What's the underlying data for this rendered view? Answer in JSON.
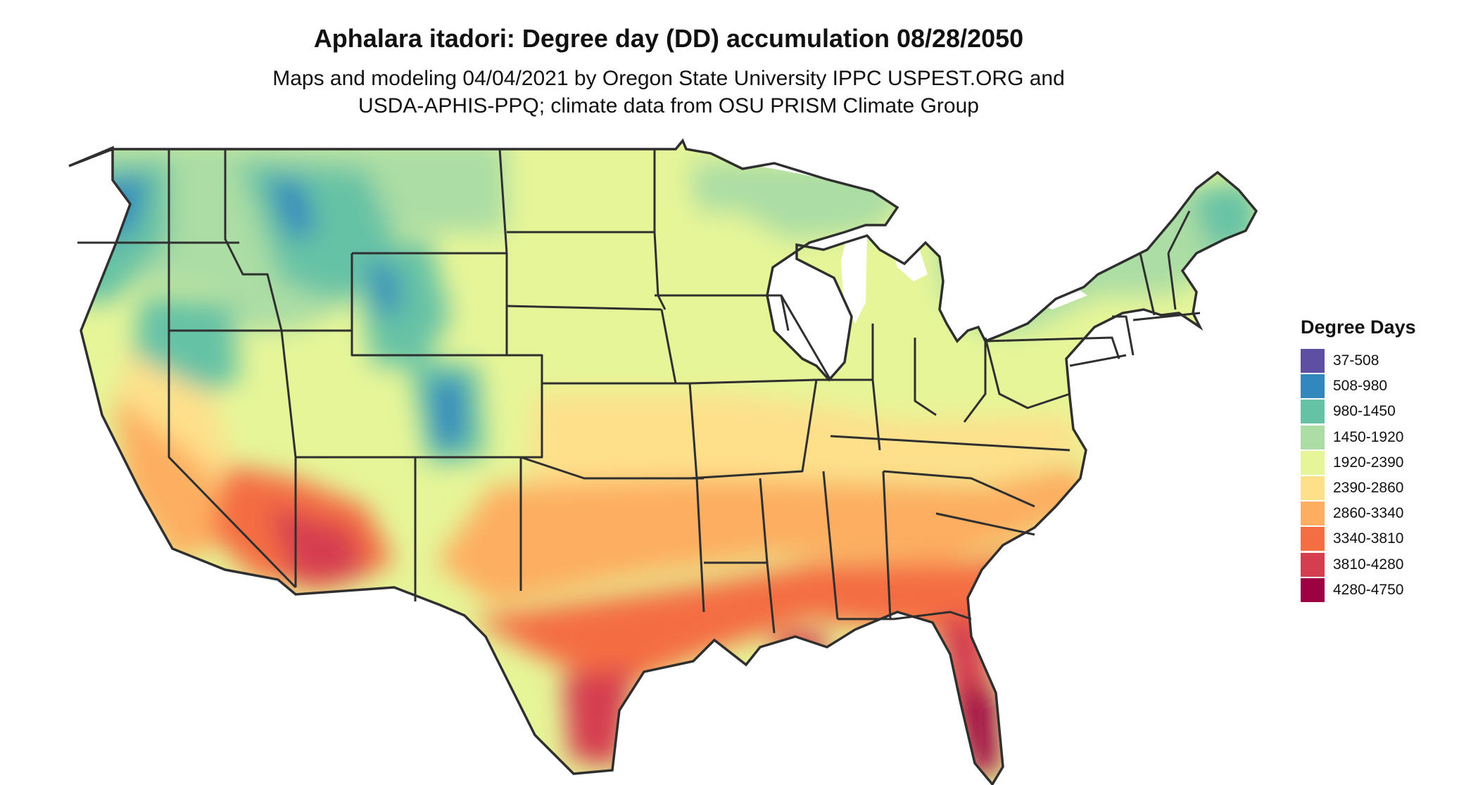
{
  "title": "Aphalara itadori: Degree day (DD) accumulation 08/28/2050",
  "subtitle_line1": "Maps and modeling 04/04/2021 by Oregon State University IPPC USPEST.ORG and",
  "subtitle_line2": "USDA-APHIS-PPQ; climate data from OSU PRISM Climate Group",
  "legend": {
    "title": "Degree Days",
    "items": [
      {
        "label": "37-508",
        "color": "#5e4fa2"
      },
      {
        "label": "508-980",
        "color": "#3288bd"
      },
      {
        "label": "980-1450",
        "color": "#66c2a5"
      },
      {
        "label": "1450-1920",
        "color": "#abdda4"
      },
      {
        "label": "1920-2390",
        "color": "#e6f598"
      },
      {
        "label": "2390-2860",
        "color": "#fee08b"
      },
      {
        "label": "2860-3340",
        "color": "#fdae61"
      },
      {
        "label": "3340-3810",
        "color": "#f46d43"
      },
      {
        "label": "3810-4280",
        "color": "#d53e4f"
      },
      {
        "label": "4280-4750",
        "color": "#9e0142"
      }
    ]
  }
}
